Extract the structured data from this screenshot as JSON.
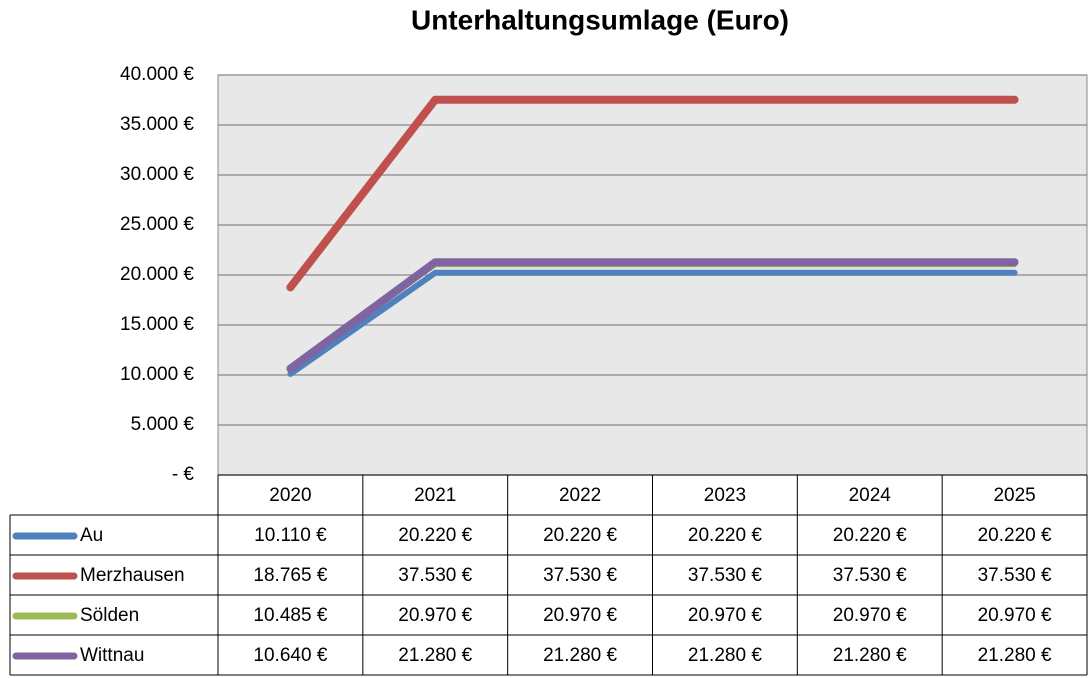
{
  "chart_data": {
    "type": "line",
    "title": "Unterhaltungsumlage (Euro)",
    "categories": [
      "2020",
      "2021",
      "2022",
      "2023",
      "2024",
      "2025"
    ],
    "series": [
      {
        "name": "Au",
        "color": "#4f81bd",
        "values": [
          10110,
          20220,
          20220,
          20220,
          20220,
          20220
        ],
        "value_labels": [
          "10.110 €",
          "20.220 €",
          "20.220 €",
          "20.220 €",
          "20.220 €",
          "20.220 €"
        ]
      },
      {
        "name": "Merzhausen",
        "color": "#c0504d",
        "values": [
          18765,
          37530,
          37530,
          37530,
          37530,
          37530
        ],
        "value_labels": [
          "18.765 €",
          "37.530 €",
          "37.530 €",
          "37.530 €",
          "37.530 €",
          "37.530 €"
        ]
      },
      {
        "name": "Sölden",
        "color": "#9bbb59",
        "values": [
          10485,
          20970,
          20970,
          20970,
          20970,
          20970
        ],
        "value_labels": [
          "10.485 €",
          "20.970 €",
          "20.970 €",
          "20.970 €",
          "20.970 €",
          "20.970 €"
        ]
      },
      {
        "name": "Wittnau",
        "color": "#8064a2",
        "values": [
          10640,
          21280,
          21280,
          21280,
          21280,
          21280
        ],
        "value_labels": [
          "10.640 €",
          "21.280 €",
          "21.280 €",
          "21.280 €",
          "21.280 €",
          "21.280 €"
        ]
      }
    ],
    "ylim": [
      0,
      40000
    ],
    "yticks": [
      {
        "value": 0,
        "label": "- €"
      },
      {
        "value": 5000,
        "label": "5.000 €"
      },
      {
        "value": 10000,
        "label": "10.000 €"
      },
      {
        "value": 15000,
        "label": "15.000 €"
      },
      {
        "value": 20000,
        "label": "20.000 €"
      },
      {
        "value": 25000,
        "label": "25.000 €"
      },
      {
        "value": 30000,
        "label": "30.000 €"
      },
      {
        "value": 35000,
        "label": "35.000 €"
      },
      {
        "value": 40000,
        "label": "40.000 €"
      }
    ],
    "grid": true
  }
}
